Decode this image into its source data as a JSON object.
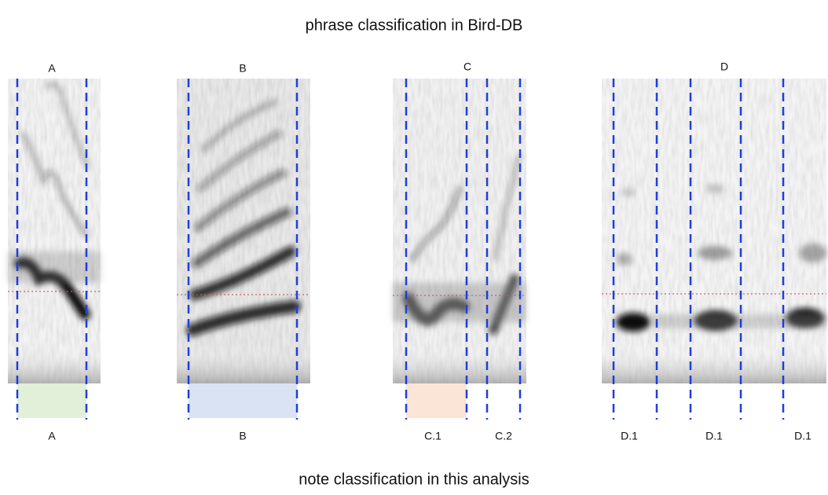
{
  "title": "phrase classification in Bird-DB",
  "panels": [
    {
      "label": "A",
      "notes": [
        "A"
      ]
    },
    {
      "label": "B",
      "notes": [
        "B"
      ]
    },
    {
      "label": "C",
      "notes": [
        "C.1",
        "C.2"
      ]
    },
    {
      "label": "D",
      "notes": [
        "D.1",
        "D.1",
        "D.1"
      ]
    }
  ],
  "caption": "note classification in this analysis"
}
